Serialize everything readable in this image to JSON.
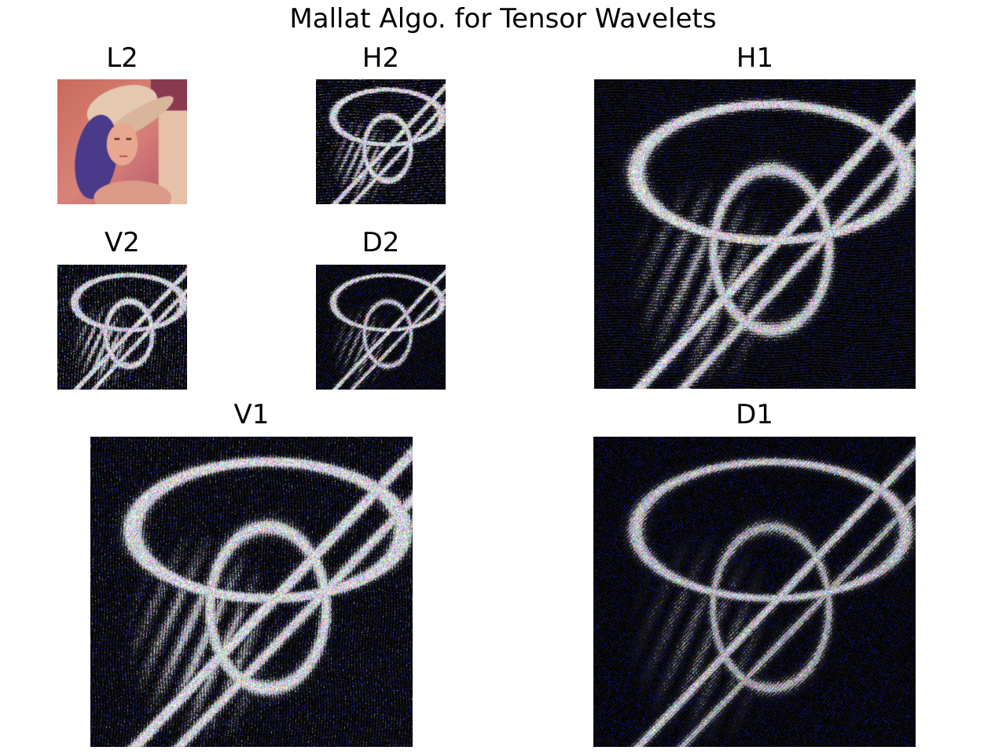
{
  "figure": {
    "title": "Mallat Algo. for Tensor Wavelets"
  },
  "panels": [
    {
      "id": "L2",
      "title": "L2",
      "kind": "approximation"
    },
    {
      "id": "H2",
      "title": "H2",
      "kind": "detail"
    },
    {
      "id": "V2",
      "title": "V2",
      "kind": "detail"
    },
    {
      "id": "D2",
      "title": "D2",
      "kind": "detail"
    },
    {
      "id": "H1",
      "title": "H1",
      "kind": "detail"
    },
    {
      "id": "V1",
      "title": "V1",
      "kind": "detail"
    },
    {
      "id": "D1",
      "title": "D1",
      "kind": "detail"
    }
  ]
}
